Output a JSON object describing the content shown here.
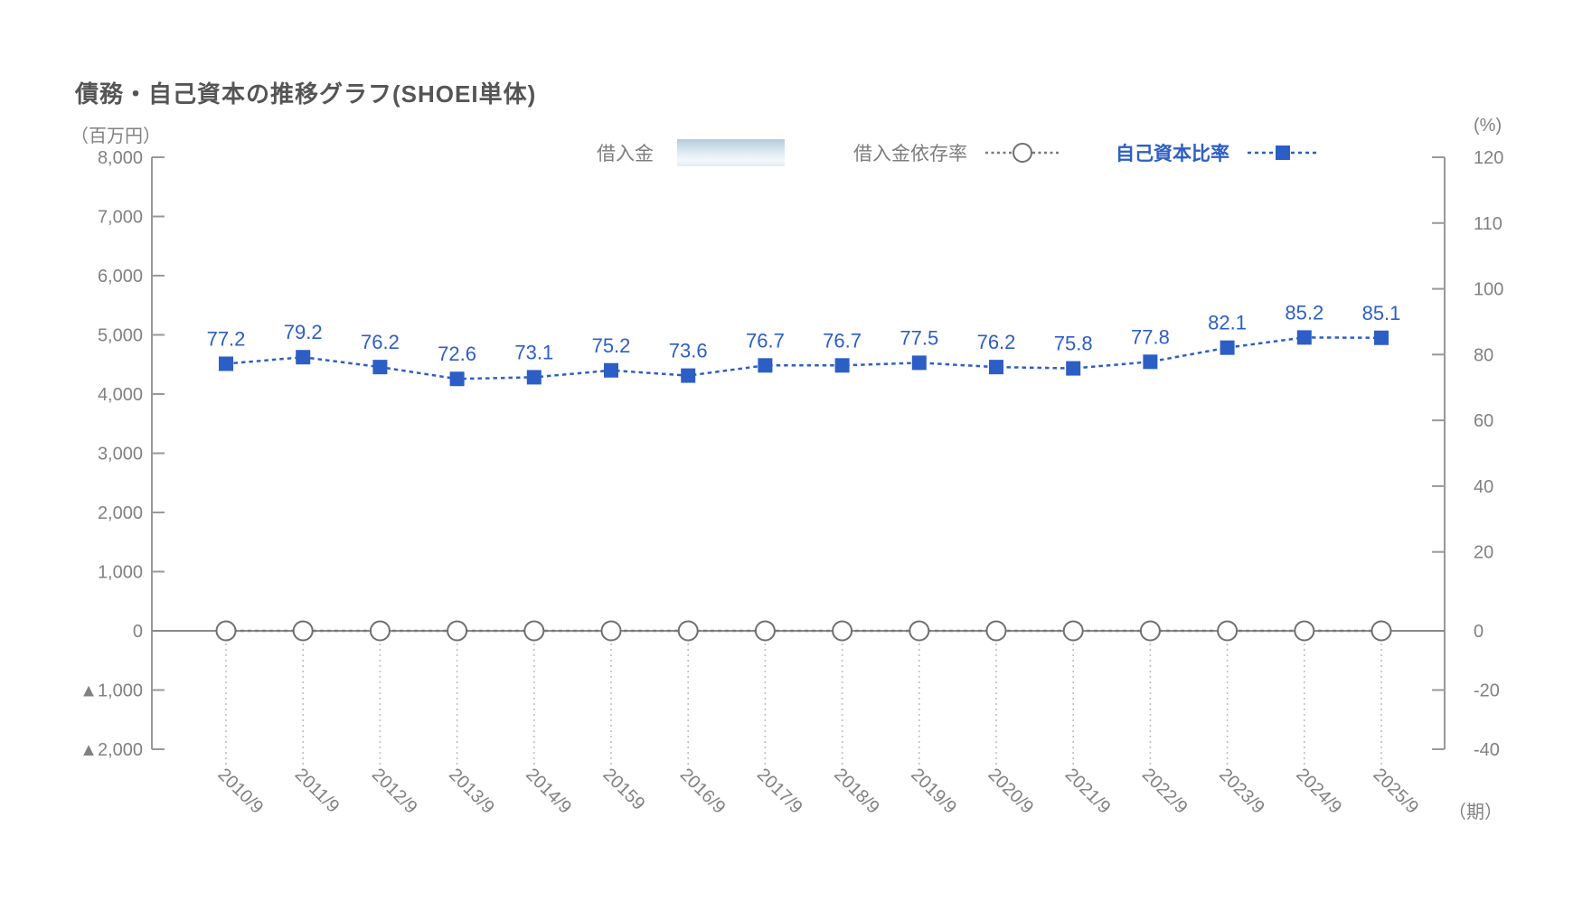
{
  "title": "債務・自己資本の推移グラフ(SHOEI単体)",
  "axis_units": {
    "left": "（百万円）",
    "right": "(%)",
    "x_suffix": "（期）"
  },
  "legend": {
    "items": [
      {
        "label": "借入金",
        "marker": "bar-swatch"
      },
      {
        "label": "借入金依存率",
        "marker": "dashed-line-circle"
      },
      {
        "label": "自己資本比率",
        "marker": "dashed-line-square"
      }
    ]
  },
  "colors": {
    "series_blue": "#2d5ec6",
    "gray_text": "#818181",
    "title_text": "#555555",
    "axis_line": "#999999",
    "zero_line": "#8a8a8a",
    "circle_stroke": "#6f6f6f",
    "dashed_gray": "#7a7a7a",
    "drop_line": "#bfbfbf",
    "swatch_top": "#b4cbdc",
    "swatch_bottom": "#e2ecf3"
  },
  "chart_data": {
    "type": "line",
    "title": "債務・自己資本の推移グラフ(SHOEI単体)",
    "xlabel": "（期）",
    "ylabel_left": "（百万円）",
    "ylabel_right": "(%)",
    "grid": false,
    "legend_position": "top",
    "categories": [
      "2010/9",
      "2011/9",
      "2012/9",
      "2013/9",
      "2014/9",
      "20159",
      "2016/9",
      "2017/9",
      "2018/9",
      "2019/9",
      "2020/9",
      "2021/9",
      "2022/9",
      "2023/9",
      "2024/9",
      "2025/9"
    ],
    "series": [
      {
        "name": "借入金",
        "type": "bar",
        "axis": "left",
        "values": [
          0,
          0,
          0,
          0,
          0,
          0,
          0,
          0,
          0,
          0,
          0,
          0,
          0,
          0,
          0,
          0
        ]
      },
      {
        "name": "借入金依存率",
        "type": "line",
        "marker": "circle",
        "axis": "right",
        "values": [
          0,
          0,
          0,
          0,
          0,
          0,
          0,
          0,
          0,
          0,
          0,
          0,
          0,
          0,
          0,
          0
        ]
      },
      {
        "name": "自己資本比率",
        "type": "line",
        "marker": "square",
        "axis": "right",
        "values": [
          77.2,
          79.2,
          76.2,
          72.6,
          73.1,
          75.2,
          73.6,
          76.7,
          76.7,
          77.5,
          76.2,
          75.8,
          77.8,
          82.1,
          85.2,
          85.1
        ]
      }
    ],
    "left_axis": {
      "ticks": [
        "8,000",
        "7,000",
        "6,000",
        "5,000",
        "4,000",
        "3,000",
        "2,000",
        "1,000",
        "0",
        "▲1,000",
        "▲2,000"
      ],
      "values": [
        8000,
        7000,
        6000,
        5000,
        4000,
        3000,
        2000,
        1000,
        0,
        -1000,
        -2000
      ],
      "range": [
        -2000,
        8000
      ]
    },
    "right_axis": {
      "ticks": [
        "120",
        "110",
        "100",
        "80",
        "60",
        "40",
        "20",
        "0",
        "-20",
        "-40"
      ],
      "values": [
        120,
        110,
        100,
        80,
        60,
        40,
        20,
        0,
        -20,
        -40
      ],
      "range": [
        -40,
        120
      ]
    }
  }
}
